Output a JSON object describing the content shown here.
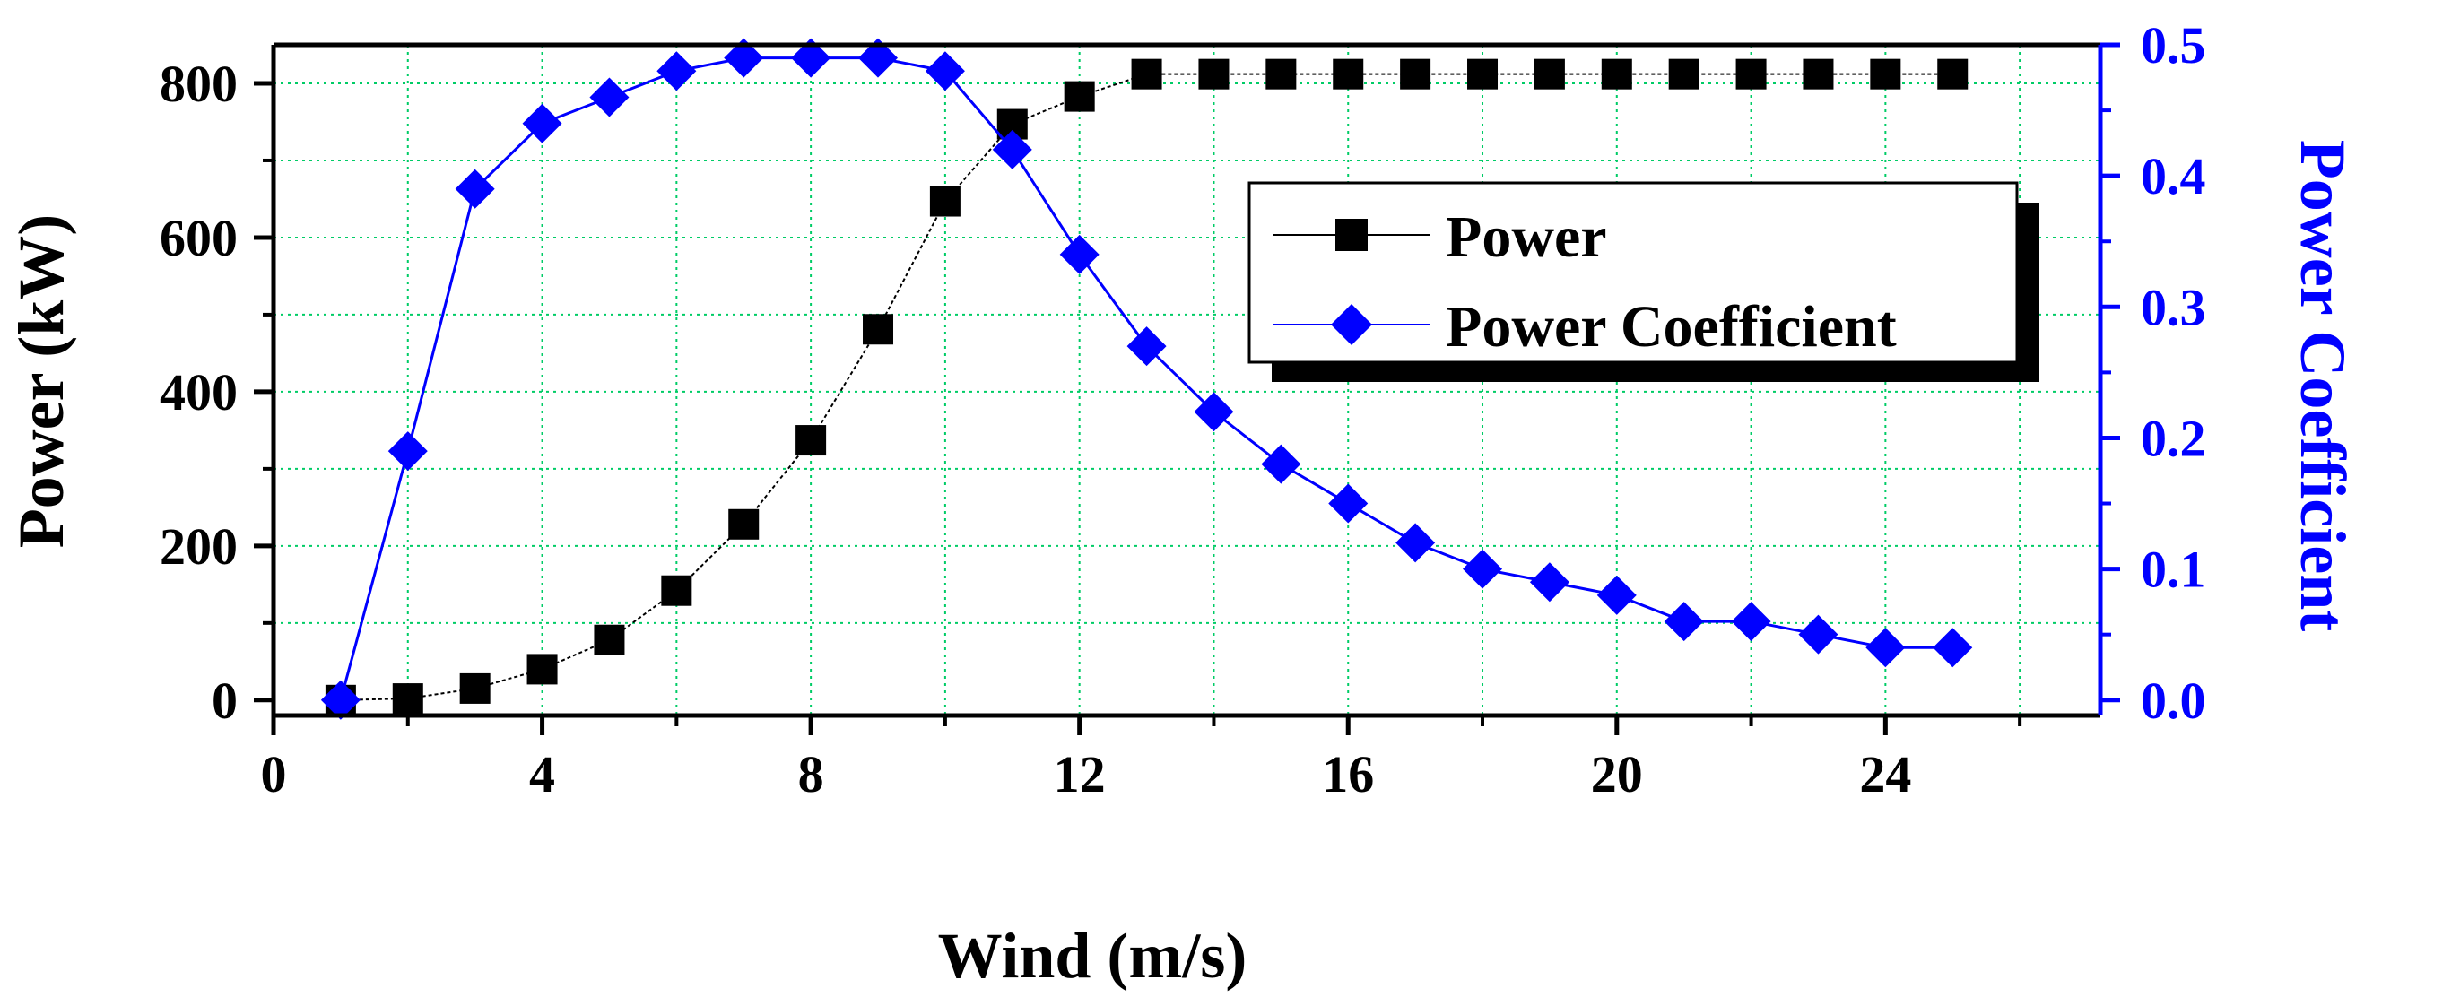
{
  "chart_data": {
    "type": "line",
    "x": [
      1,
      2,
      3,
      4,
      5,
      6,
      7,
      8,
      9,
      10,
      11,
      12,
      13,
      14,
      15,
      16,
      17,
      18,
      19,
      20,
      21,
      22,
      23,
      24,
      25
    ],
    "series": [
      {
        "name": "Power",
        "axis": "left",
        "color": "#000000",
        "marker": "square",
        "values": [
          0,
          2,
          15,
          40,
          78,
          142,
          228,
          337,
          481,
          647,
          747,
          783,
          812,
          812,
          812,
          812,
          812,
          812,
          812,
          812,
          812,
          812,
          812,
          812,
          812
        ]
      },
      {
        "name": "Power Coefficient",
        "axis": "right",
        "color": "#0000ff",
        "marker": "diamond",
        "values": [
          0,
          0.19,
          0.39,
          0.44,
          0.46,
          0.48,
          0.49,
          0.49,
          0.49,
          0.48,
          0.42,
          0.34,
          0.27,
          0.22,
          0.18,
          0.15,
          0.12,
          0.1,
          0.09,
          0.08,
          0.06,
          0.06,
          0.05,
          0.04,
          0.04
        ]
      }
    ],
    "xlabel": "Wind (m/s)",
    "ylabel": "Power (kW)",
    "y2label": "Power Coefficient",
    "xlim": [
      0,
      27.2
    ],
    "ylim": [
      -20,
      850
    ],
    "y2lim": [
      -0.0118,
      0.5
    ],
    "xticks": [
      0,
      4,
      8,
      12,
      16,
      20,
      24
    ],
    "xtick_labels": [
      "0",
      "4",
      "8",
      "12",
      "16",
      "20",
      "24"
    ],
    "yticks": [
      0,
      200,
      400,
      600,
      800
    ],
    "ytick_labels": [
      "0",
      "200",
      "400",
      "600",
      "800"
    ],
    "y2ticks": [
      0,
      0.1,
      0.2,
      0.3,
      0.4,
      0.5
    ],
    "y2tick_labels": [
      "0.0",
      "0.1",
      "0.2",
      "0.3",
      "0.4",
      "0.5"
    ],
    "grid": true,
    "grid_color": "#00cc66",
    "left_axis_color": "#000000",
    "right_axis_color": "#0000ff",
    "legend": {
      "position": "upper-right",
      "entries": [
        "Power",
        "Power Coefficient"
      ]
    }
  }
}
